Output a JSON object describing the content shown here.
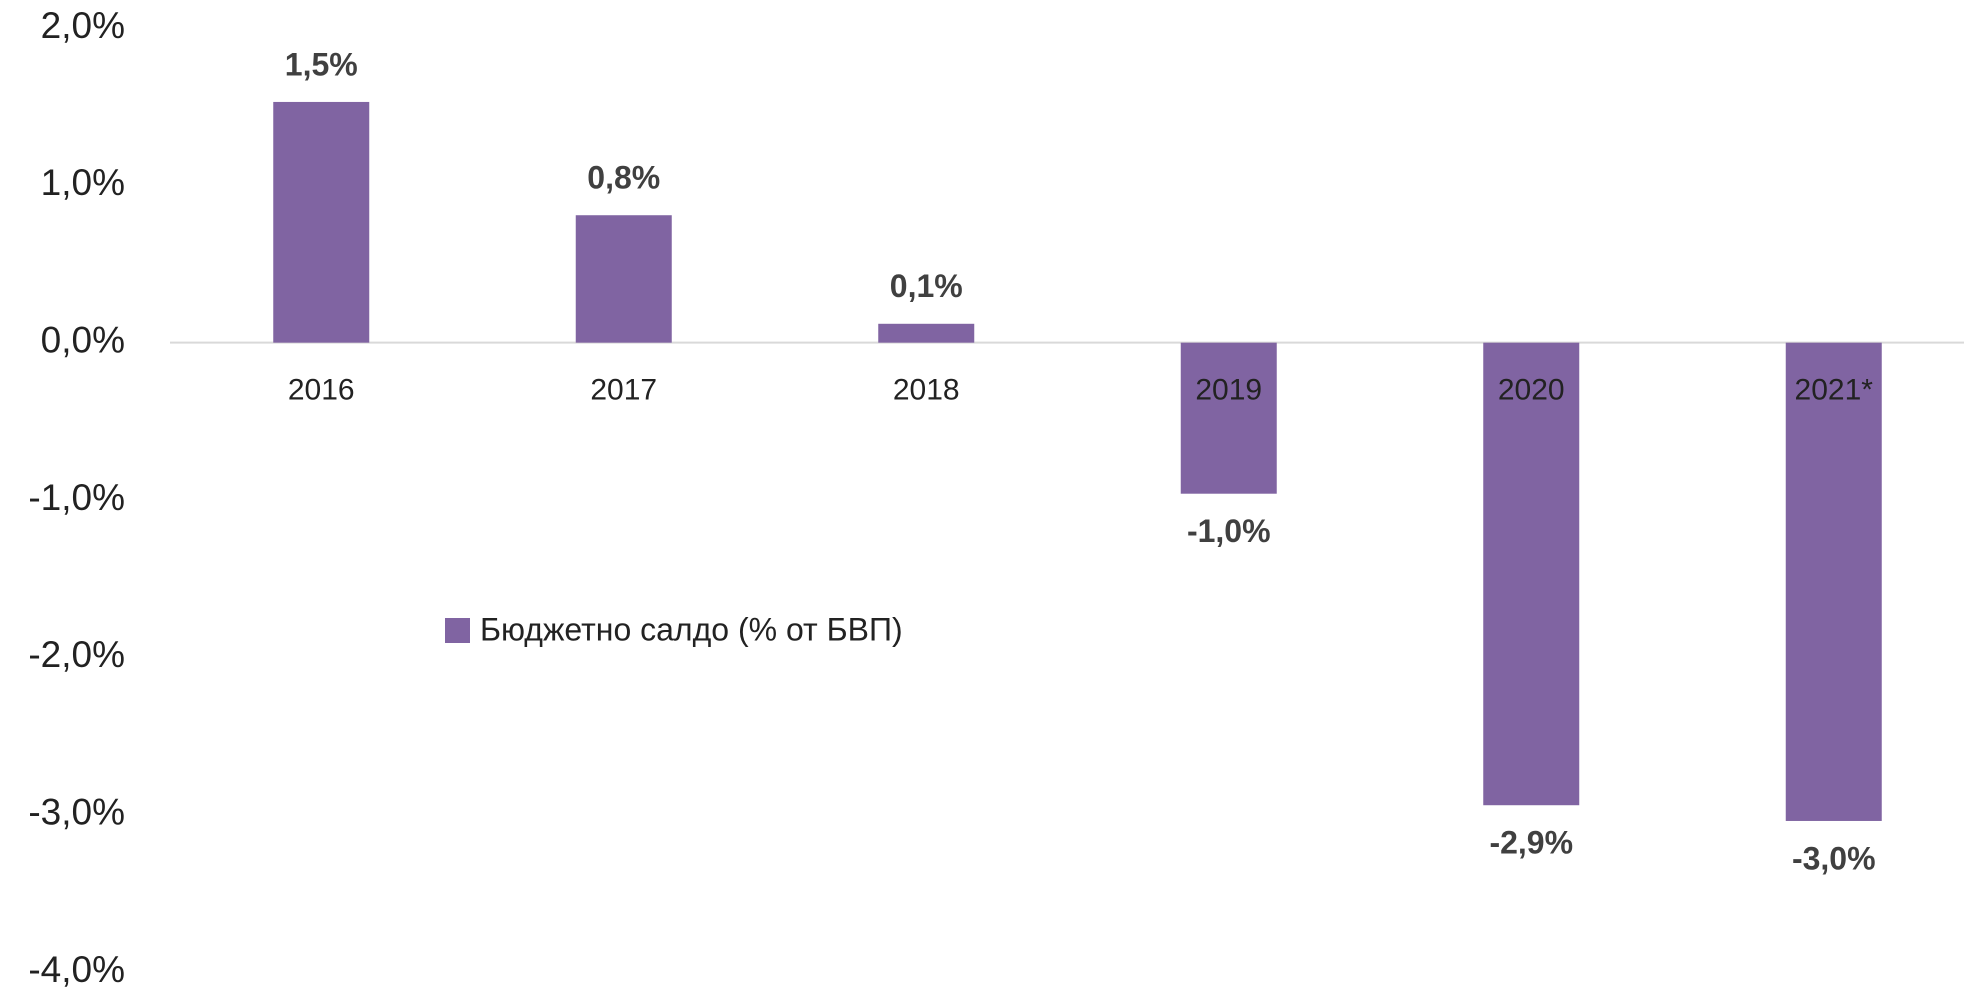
{
  "chart_data": {
    "type": "bar",
    "categories": [
      "2016",
      "2017",
      "2018",
      "2019",
      "2020",
      "2021*"
    ],
    "series": [
      {
        "name": "Бюджетно салдо (% от БВП)",
        "color": "#8064a2",
        "values": [
          1.53,
          0.81,
          0.12,
          -0.96,
          -2.94,
          -3.04
        ],
        "value_labels": [
          "1,5%",
          "0,8%",
          "0,1%",
          "-1,0%",
          "-2,9%",
          "-3,0%"
        ]
      }
    ],
    "ylim": [
      -4,
      2
    ],
    "yticks": [
      {
        "value": 2,
        "label": "2,0%"
      },
      {
        "value": 1,
        "label": "1,0%"
      },
      {
        "value": 0,
        "label": "0,0%"
      },
      {
        "value": -1,
        "label": "-1,0%"
      },
      {
        "value": -2,
        "label": "-2,0%"
      },
      {
        "value": -3,
        "label": "-3,0%"
      },
      {
        "value": -4,
        "label": "-4,0%"
      }
    ],
    "grid": false,
    "legend": "left"
  }
}
